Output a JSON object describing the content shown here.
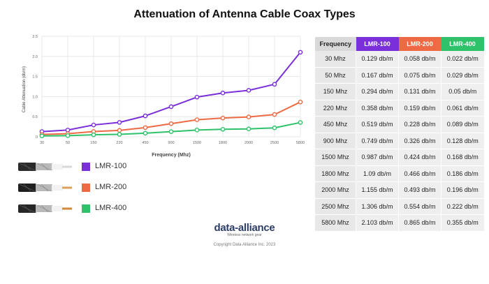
{
  "title": "Attenuation of Antenna Cable Coax Types",
  "chart_data": {
    "type": "line",
    "title": "Attenuation of Antenna Cable Coax Types",
    "xlabel": "Frequency (Mhz)",
    "ylabel": "Cable Attenuation (db/m)",
    "categories": [
      "30",
      "50",
      "150",
      "220",
      "450",
      "900",
      "1500",
      "1800",
      "2000",
      "2500",
      "5800"
    ],
    "ylim": [
      0,
      2.5
    ],
    "yticks": [
      "0",
      "0.5",
      "1.0",
      "1.5",
      "2.0",
      "2.5"
    ],
    "grid": true,
    "series": [
      {
        "name": "LMR-100",
        "color": "#7b2fd9",
        "values": [
          0.129,
          0.167,
          0.294,
          0.358,
          0.519,
          0.749,
          0.987,
          1.09,
          1.155,
          1.306,
          2.103
        ]
      },
      {
        "name": "LMR-200",
        "color": "#ee6a44",
        "values": [
          0.058,
          0.075,
          0.131,
          0.159,
          0.228,
          0.326,
          0.424,
          0.466,
          0.493,
          0.554,
          0.865
        ]
      },
      {
        "name": "LMR-400",
        "color": "#2ec26a",
        "values": [
          0.022,
          0.029,
          0.05,
          0.061,
          0.089,
          0.128,
          0.168,
          0.186,
          0.196,
          0.222,
          0.355
        ]
      }
    ]
  },
  "table": {
    "header": "Frequency",
    "columns": [
      {
        "label": "LMR-100",
        "color": "#7b2fd9"
      },
      {
        "label": "LMR-200",
        "color": "#ee6a44"
      },
      {
        "label": "LMR-400",
        "color": "#2ec26a"
      }
    ],
    "rows": [
      {
        "freq": "30 Mhz",
        "values": [
          "0.129 db/m",
          "0.058 db/m",
          "0.022 db/m"
        ]
      },
      {
        "freq": "50 Mhz",
        "values": [
          "0.167 db/m",
          "0.075 db/m",
          "0.029 db/m"
        ]
      },
      {
        "freq": "150 Mhz",
        "values": [
          "0.294 db/m",
          "0.131 db/m",
          "0.05 db/m"
        ]
      },
      {
        "freq": "220 Mhz",
        "values": [
          "0.358 db/m",
          "0.159 db/m",
          "0.061 db/m"
        ]
      },
      {
        "freq": "450 Mhz",
        "values": [
          "0.519 db/m",
          "0.228 db/m",
          "0.089 db/m"
        ]
      },
      {
        "freq": "900 Mhz",
        "values": [
          "0.749 db/m",
          "0.326 db/m",
          "0.128 db/m"
        ]
      },
      {
        "freq": "1500 Mhz",
        "values": [
          "0.987 db/m",
          "0.424 db/m",
          "0.168 db/m"
        ]
      },
      {
        "freq": "1800 Mhz",
        "values": [
          "1.09 db/m",
          "0.466 db/m",
          "0.186 db/m"
        ]
      },
      {
        "freq": "2000 Mhz",
        "values": [
          "1.155 db/m",
          "0.493 db/m",
          "0.196 db/m"
        ]
      },
      {
        "freq": "2500 Mhz",
        "values": [
          "1.306 db/m",
          "0.554 db/m",
          "0.222 db/m"
        ]
      },
      {
        "freq": "5800 Mhz",
        "values": [
          "2.103 db/m",
          "0.865 db/m",
          "0.355 db/m"
        ]
      }
    ]
  },
  "legend": [
    {
      "label": "LMR-100",
      "color": "#7b2fd9"
    },
    {
      "label": "LMR-200",
      "color": "#ee6a44"
    },
    {
      "label": "LMR-400",
      "color": "#2ec26a"
    }
  ],
  "logo": {
    "name": "data-alliance",
    "tagline": "Wireless network gear"
  },
  "copyright": "Copyright Data Alliance Inc. 2023"
}
